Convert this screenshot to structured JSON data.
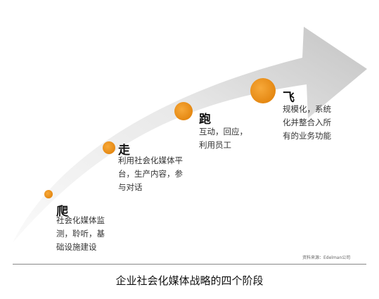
{
  "stages": [
    {
      "title": "爬",
      "desc_lines": [
        "社会化媒体监",
        "测，聆听，基",
        "础设施建设"
      ]
    },
    {
      "title": "走",
      "desc_lines": [
        "利用社会化媒体平",
        "台，生产内容，参",
        "与对话"
      ]
    },
    {
      "title": "跑",
      "desc_lines": [
        "互动，回应，",
        "利用员工"
      ]
    },
    {
      "title": "飞",
      "desc_lines": [
        "规模化，系统",
        "化并整合入所",
        "有的业务功能"
      ]
    }
  ],
  "source_note": "资料来源：Edelman公司",
  "caption": "企业社会化媒体战略的四个阶段",
  "colors": {
    "arrow_light": "#f2f2f2",
    "arrow_dark": "#c9c9c9",
    "dot": "#e58a12",
    "dot_light": "#f5a637"
  }
}
